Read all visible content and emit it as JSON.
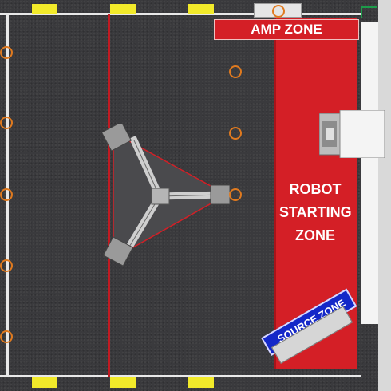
{
  "zones": {
    "amp_zone": "AMP ZONE",
    "robot_starting_zone": [
      "ROBOT",
      "STARTING",
      "ZONE"
    ],
    "source_zone": "SOURCE ZONE"
  },
  "colors": {
    "carpet": "#3a3a3d",
    "alliance_red": "#d41f26",
    "alliance_blue": "#1428c8",
    "white_line": "#e8e8e8",
    "note_orange": "#e07a1f",
    "stage_metal": "#cfcfcf",
    "field_element_yellow": "#f2ea2a"
  },
  "icons": {
    "note": "note-ring-icon",
    "stage": "stage-truss-icon",
    "speaker": "speaker-icon"
  }
}
